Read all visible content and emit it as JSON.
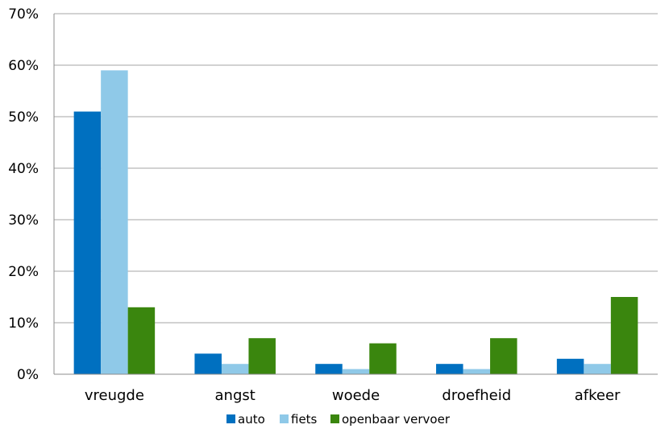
{
  "chart_data": {
    "type": "bar",
    "categories": [
      "vreugde",
      "angst",
      "woede",
      "droefheid",
      "afkeer"
    ],
    "series": [
      {
        "name": "auto",
        "color": "#0070c0",
        "values": [
          51,
          4,
          2,
          2,
          3
        ]
      },
      {
        "name": "fiets",
        "color": "#8fc9e8",
        "values": [
          59,
          2,
          1,
          1,
          2
        ]
      },
      {
        "name": "openbaar vervoer",
        "color": "#3a860e",
        "values": [
          13,
          7,
          6,
          7,
          15
        ]
      }
    ],
    "y_ticks": [
      "0%",
      "10%",
      "20%",
      "30%",
      "40%",
      "50%",
      "60%",
      "70%"
    ],
    "ylim": [
      0,
      70
    ],
    "grid": true,
    "legend_position": "bottom"
  }
}
